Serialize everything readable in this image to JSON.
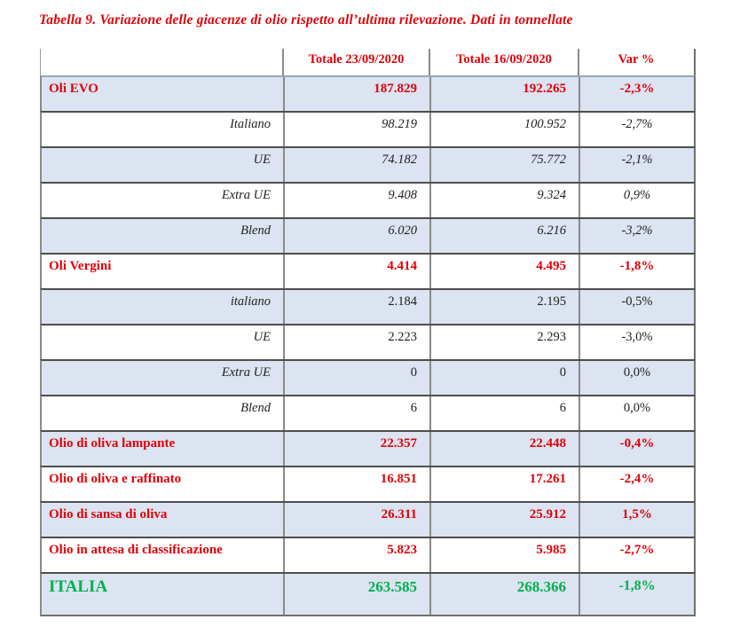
{
  "title": "Tabella 9. Variazione delle giacenze di olio rispetto all’ultima rilevazione. Dati in tonnellate",
  "colors": {
    "section_text": "#e00008",
    "total_text": "#00b050",
    "row_shading": "#dbe4f0",
    "body_text": "#1f1f1f"
  },
  "table": {
    "columns": [
      "",
      "Totale 23/09/2020",
      "Totale 16/09/2020",
      "Var %"
    ],
    "rows": [
      {
        "label": "Oli EVO",
        "total_23_09_2020": "187.829",
        "total_16_09_2020": "192.265",
        "var_pct": "-2,3%"
      },
      {
        "label": "Italiano",
        "total_23_09_2020": "98.219",
        "total_16_09_2020": "100.952",
        "var_pct": "-2,7%"
      },
      {
        "label": "UE",
        "total_23_09_2020": "74.182",
        "total_16_09_2020": "75.772",
        "var_pct": "-2,1%"
      },
      {
        "label": "Extra UE",
        "total_23_09_2020": "9.408",
        "total_16_09_2020": "9.324",
        "var_pct": "0,9%"
      },
      {
        "label": "Blend",
        "total_23_09_2020": "6.020",
        "total_16_09_2020": "6.216",
        "var_pct": "-3,2%"
      },
      {
        "label": "Oli Vergini",
        "total_23_09_2020": "4.414",
        "total_16_09_2020": "4.495",
        "var_pct": "-1,8%"
      },
      {
        "label": "italiano",
        "total_23_09_2020": "2.184",
        "total_16_09_2020": "2.195",
        "var_pct": "-0,5%"
      },
      {
        "label": "UE",
        "total_23_09_2020": "2.223",
        "total_16_09_2020": "2.293",
        "var_pct": "-3,0%"
      },
      {
        "label": "Extra UE",
        "total_23_09_2020": "0",
        "total_16_09_2020": "0",
        "var_pct": "0,0%"
      },
      {
        "label": "Blend",
        "total_23_09_2020": "6",
        "total_16_09_2020": "6",
        "var_pct": "0,0%"
      },
      {
        "label": "Olio di oliva lampante",
        "total_23_09_2020": "22.357",
        "total_16_09_2020": "22.448",
        "var_pct": "-0,4%"
      },
      {
        "label": "Olio di oliva e raffinato",
        "total_23_09_2020": "16.851",
        "total_16_09_2020": "17.261",
        "var_pct": "-2,4%"
      },
      {
        "label": "Olio di sansa di oliva",
        "total_23_09_2020": "26.311",
        "total_16_09_2020": "25.912",
        "var_pct": "1,5%"
      },
      {
        "label": "Olio in attesa di classificazione",
        "total_23_09_2020": "5.823",
        "total_16_09_2020": "5.985",
        "var_pct": "-2,7%"
      },
      {
        "label": "ITALIA",
        "total_23_09_2020": "263.585",
        "total_16_09_2020": "268.366",
        "var_pct": "-1,8%"
      }
    ]
  }
}
